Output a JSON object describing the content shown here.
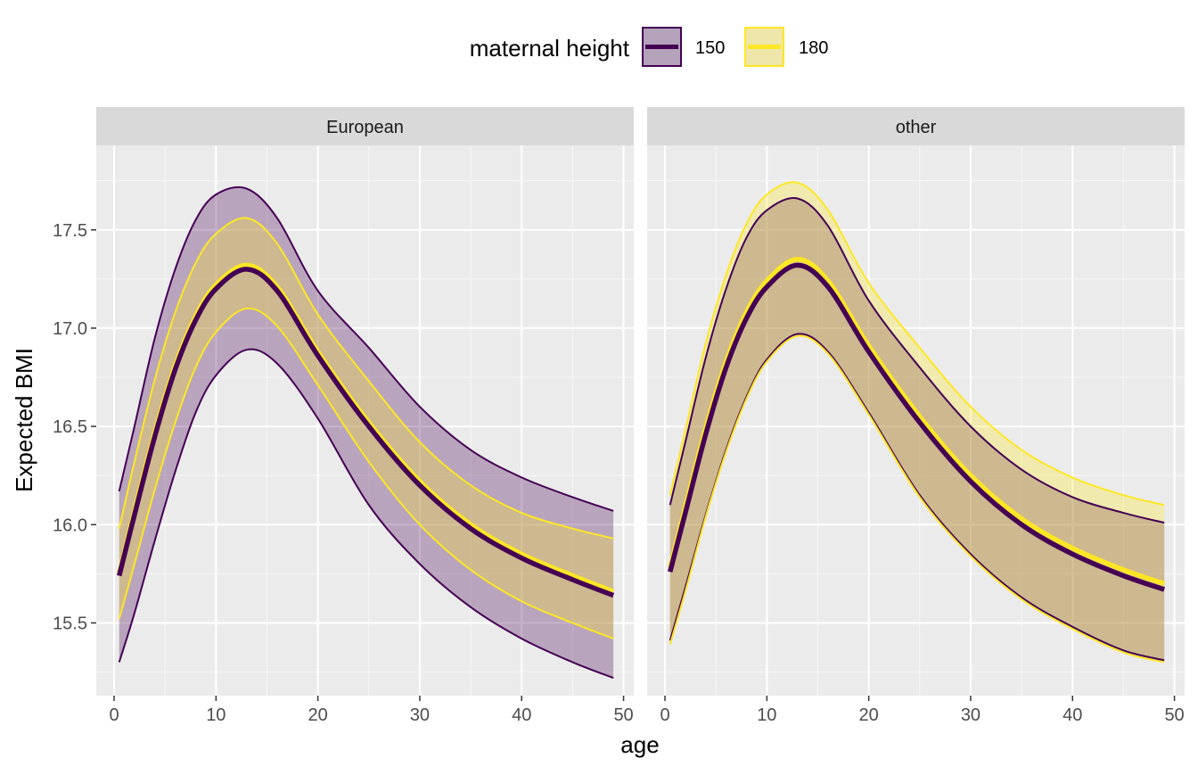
{
  "legend": {
    "title": "maternal height",
    "placement": "top",
    "items": [
      {
        "label": "150",
        "line_color": "#440154",
        "fill": "#b3a2b9"
      },
      {
        "label": "180",
        "line_color": "#FDE725",
        "fill": "#efe6a9"
      }
    ]
  },
  "chart_data": {
    "type": "line",
    "xlabel": "age",
    "ylabel": "Expected BMI",
    "xlim": [
      -1.75,
      51
    ],
    "ylim": [
      15.13,
      17.93
    ],
    "xticks": [
      0,
      10,
      20,
      30,
      40,
      50
    ],
    "yticks": [
      15.5,
      16.0,
      16.5,
      17.0,
      17.5
    ],
    "ytick_labels": [
      "15.5",
      "16.0",
      "16.5",
      "17.0",
      "17.5"
    ],
    "grid": true,
    "x": [
      0.5,
      2,
      4,
      6,
      8,
      10,
      13,
      16,
      20,
      25,
      30,
      35,
      40,
      45,
      49
    ],
    "panels": [
      {
        "strip": "European",
        "series": [
          {
            "name": "150",
            "values": [
              15.74,
              16.05,
              16.45,
              16.79,
              17.04,
              17.2,
              17.3,
              17.19,
              16.86,
              16.5,
              16.2,
              15.98,
              15.83,
              15.72,
              15.64
            ],
            "lower": [
              15.3,
              15.55,
              15.92,
              16.27,
              16.57,
              16.76,
              16.89,
              16.82,
              16.54,
              16.1,
              15.8,
              15.58,
              15.42,
              15.3,
              15.22
            ],
            "upper": [
              16.17,
              16.5,
              16.95,
              17.3,
              17.55,
              17.68,
              17.71,
              17.56,
              17.19,
              16.9,
              16.6,
              16.38,
              16.24,
              16.14,
              16.07
            ]
          },
          {
            "name": "180",
            "values": [
              15.75,
              16.07,
              16.47,
              16.81,
              17.06,
              17.22,
              17.32,
              17.21,
              16.88,
              16.52,
              16.22,
              16.0,
              15.85,
              15.74,
              15.66
            ],
            "lower": [
              15.52,
              15.8,
              16.18,
              16.52,
              16.8,
              16.98,
              17.1,
              17.01,
              16.71,
              16.32,
              16.0,
              15.77,
              15.61,
              15.5,
              15.42
            ],
            "upper": [
              15.98,
              16.32,
              16.74,
              17.08,
              17.33,
              17.48,
              17.56,
              17.43,
              17.07,
              16.73,
              16.42,
              16.2,
              16.06,
              15.98,
              15.93
            ]
          }
        ]
      },
      {
        "strip": "other",
        "series": [
          {
            "name": "150",
            "values": [
              15.76,
              16.06,
              16.46,
              16.8,
              17.05,
              17.21,
              17.32,
              17.21,
              16.88,
              16.52,
              16.22,
              16.0,
              15.85,
              15.74,
              15.67
            ],
            "lower": [
              15.41,
              15.68,
              16.05,
              16.38,
              16.65,
              16.84,
              16.97,
              16.88,
              16.57,
              16.15,
              15.85,
              15.63,
              15.48,
              15.36,
              15.31
            ],
            "upper": [
              16.1,
              16.42,
              16.85,
              17.2,
              17.46,
              17.6,
              17.66,
              17.52,
              17.14,
              16.8,
              16.5,
              16.28,
              16.14,
              16.06,
              16.01
            ]
          },
          {
            "name": "180",
            "values": [
              15.78,
              16.09,
              16.49,
              16.83,
              17.08,
              17.24,
              17.35,
              17.24,
              16.91,
              16.55,
              16.25,
              16.03,
              15.88,
              15.77,
              15.7
            ],
            "lower": [
              15.39,
              15.66,
              16.04,
              16.37,
              16.64,
              16.83,
              16.96,
              16.87,
              16.56,
              16.14,
              15.84,
              15.62,
              15.47,
              15.35,
              15.3
            ],
            "upper": [
              16.15,
              16.48,
              16.92,
              17.27,
              17.53,
              17.68,
              17.74,
              17.6,
              17.23,
              16.9,
              16.6,
              16.38,
              16.24,
              16.15,
              16.1
            ]
          }
        ]
      }
    ]
  }
}
